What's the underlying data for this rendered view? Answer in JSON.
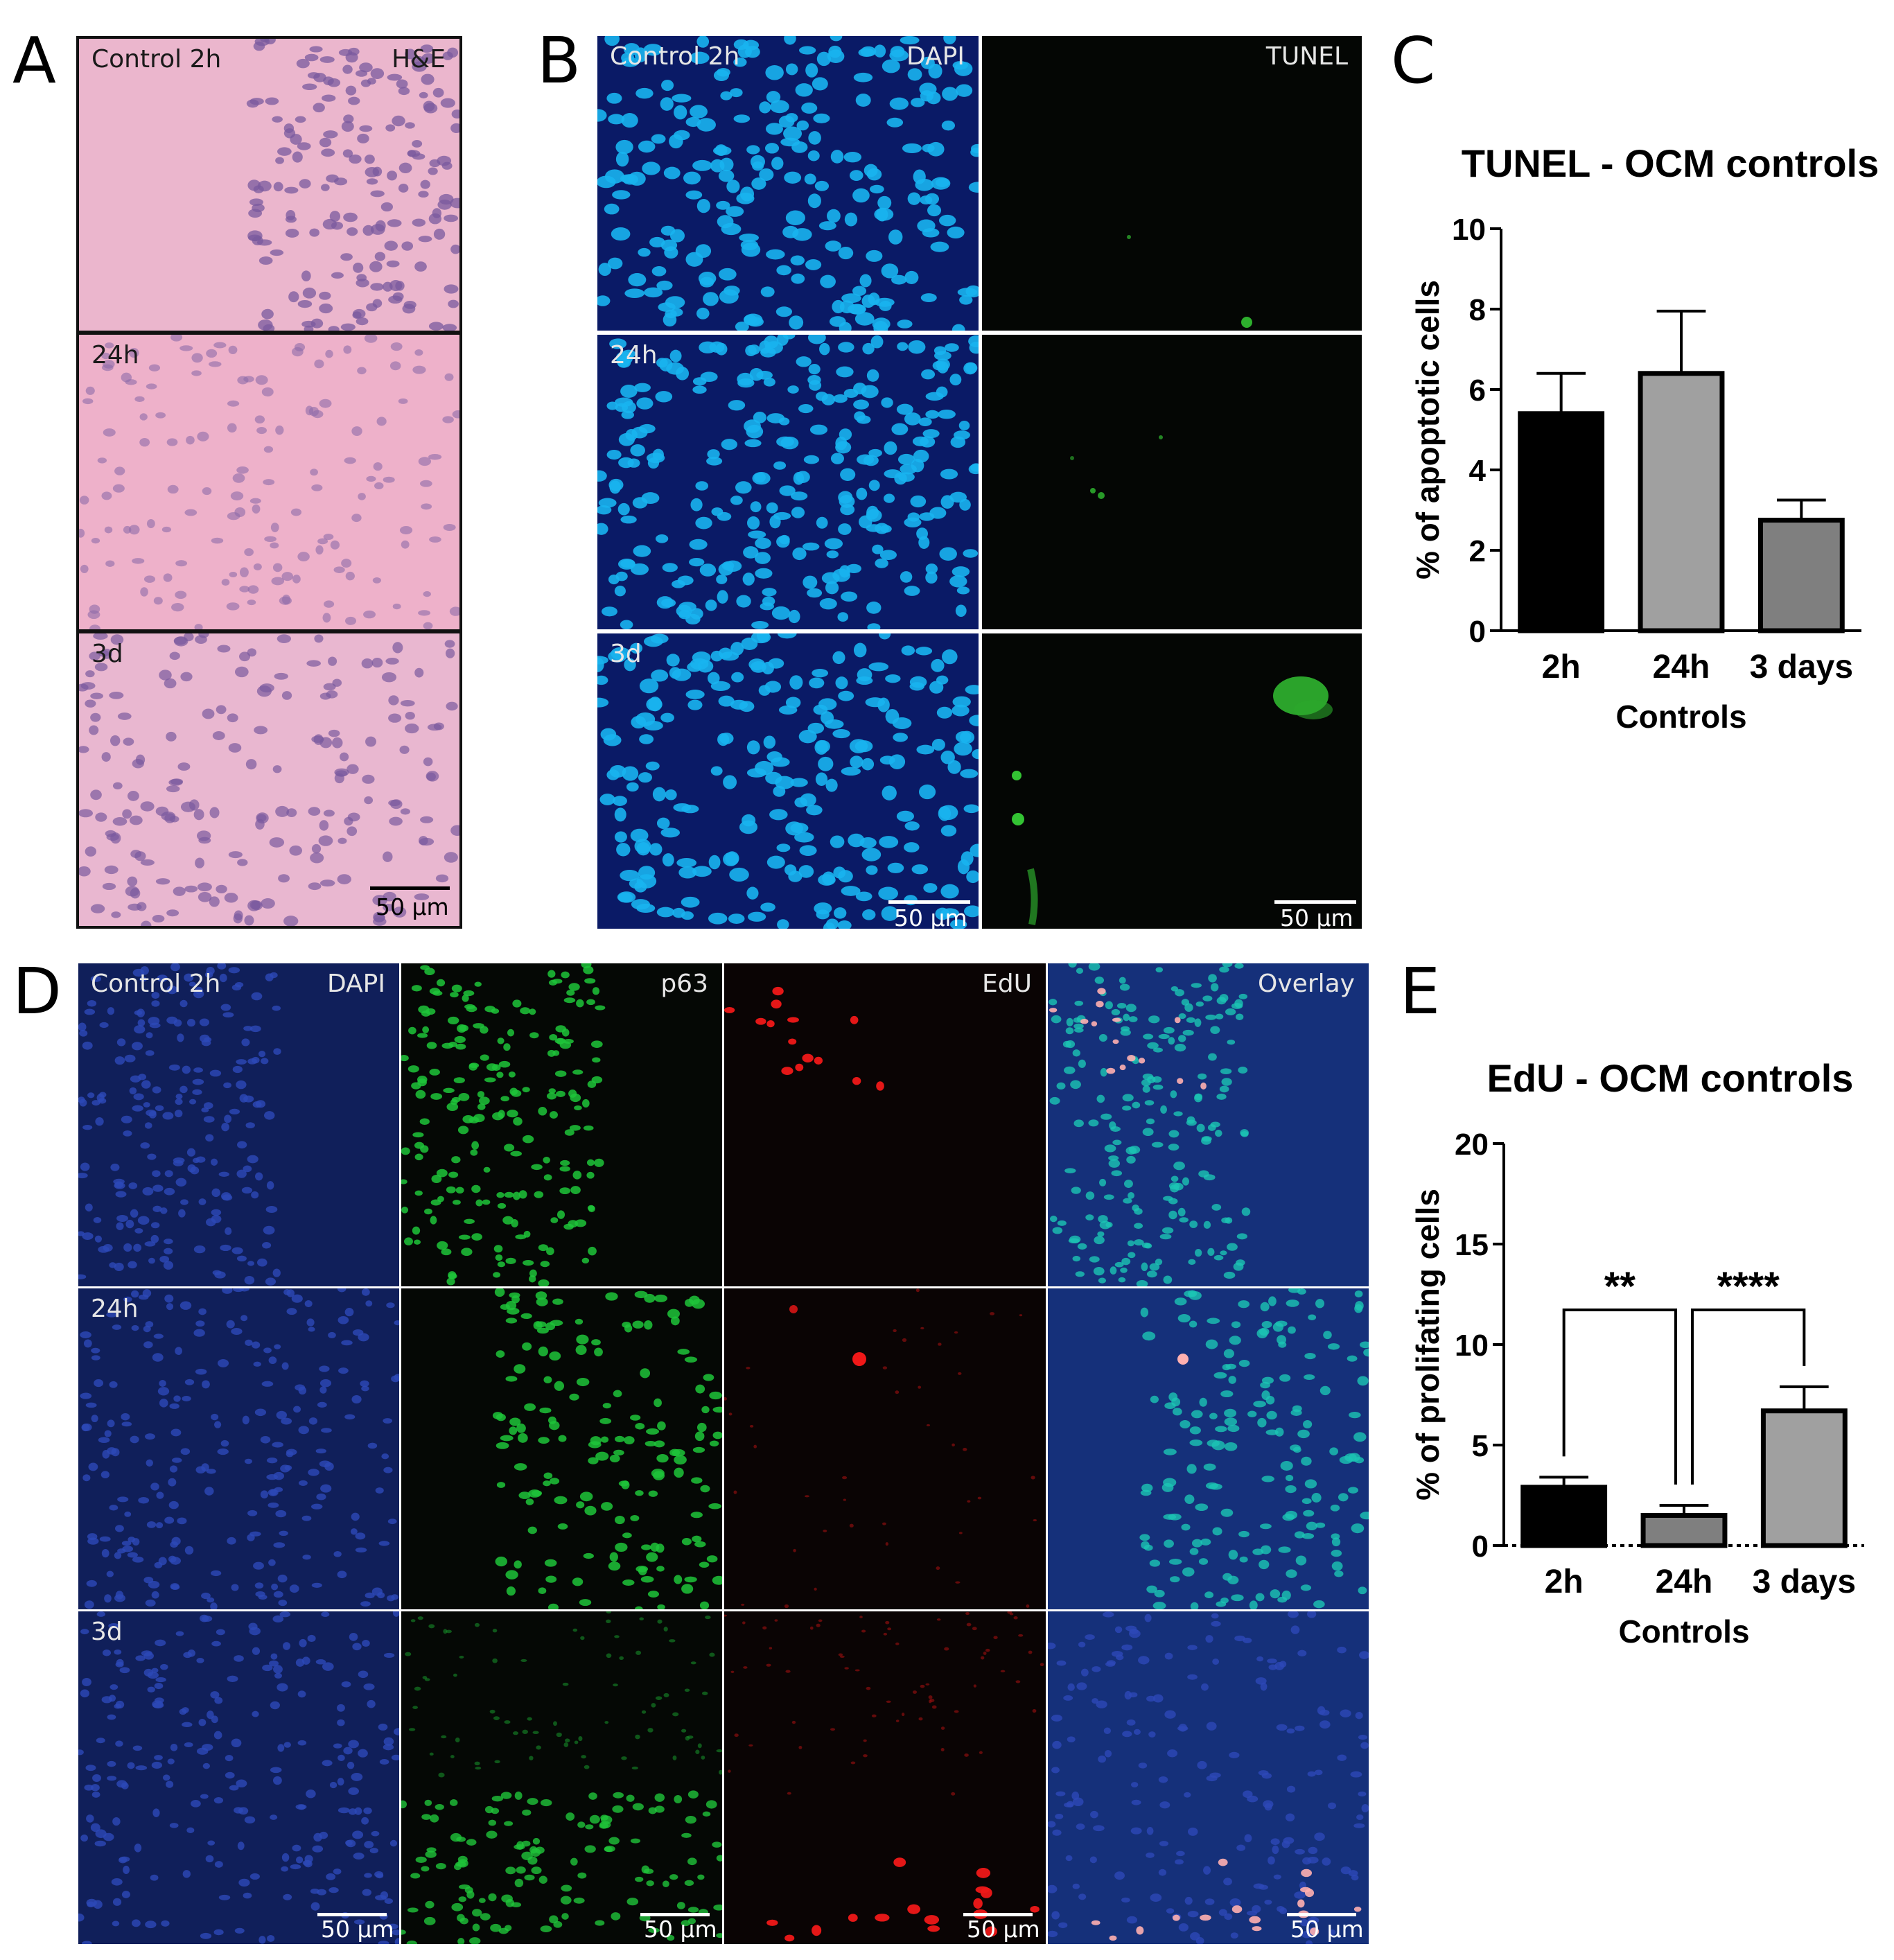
{
  "panel_labels": {
    "a": "A",
    "b": "B",
    "c": "C",
    "d": "D",
    "e": "E"
  },
  "panel_a": {
    "stain": "H&E",
    "rows": [
      "Control 2h",
      "24h",
      "3d"
    ],
    "scale": "50 μm",
    "colors": {
      "tissue": "#eab3cc",
      "nuclei": "#7a5a9e",
      "frame": "#111111"
    }
  },
  "panel_b": {
    "rows": [
      "Control 2h",
      "24h",
      "3d"
    ],
    "channels": [
      "DAPI",
      "TUNEL"
    ],
    "scale": "50 μm",
    "colors": {
      "dapi": "#0a1a66",
      "dapi_nuclei": "#18b4f0",
      "tunel": "#040604",
      "tunel_signal": "#38d838"
    }
  },
  "panel_d": {
    "rows": [
      "Control 2h",
      "24h",
      "3d"
    ],
    "channels": [
      "DAPI",
      "p63",
      "EdU",
      "Overlay"
    ],
    "scale": "50 μm",
    "colors": {
      "dapi": "#101f5a",
      "p63": "#1fc43a",
      "edu": "#f01818",
      "overlay": "#15307a"
    }
  },
  "chart_data": [
    {
      "type": "bar",
      "title": "TUNEL - OCM controls",
      "xlabel": "Controls",
      "ylabel": "% of apoptotic cells",
      "categories": [
        "2h",
        "24h",
        "3 days"
      ],
      "values": [
        5.4,
        6.4,
        2.75
      ],
      "errors": [
        1.0,
        1.55,
        0.5
      ],
      "ylim": [
        0,
        10
      ],
      "yticks": [
        "0",
        "2",
        "4",
        "6",
        "8",
        "10"
      ],
      "colors": [
        "#000000",
        "#a0a0a0",
        "#7f7f7f"
      ]
    },
    {
      "type": "bar",
      "title": "EdU - OCM controls",
      "xlabel": "Controls",
      "ylabel": "% of prolifating cells",
      "categories": [
        "2h",
        "24h",
        "3 days"
      ],
      "values": [
        2.9,
        1.5,
        6.7
      ],
      "errors": [
        0.5,
        0.5,
        1.2
      ],
      "ylim": [
        0,
        20
      ],
      "yticks": [
        "0",
        "5",
        "10",
        "15",
        "20"
      ],
      "colors": [
        "#000000",
        "#7f7f7f",
        "#a0a0a0"
      ],
      "significance": [
        {
          "from": 0,
          "to": 1,
          "label": "**"
        },
        {
          "from": 1,
          "to": 2,
          "label": "****"
        }
      ]
    }
  ]
}
